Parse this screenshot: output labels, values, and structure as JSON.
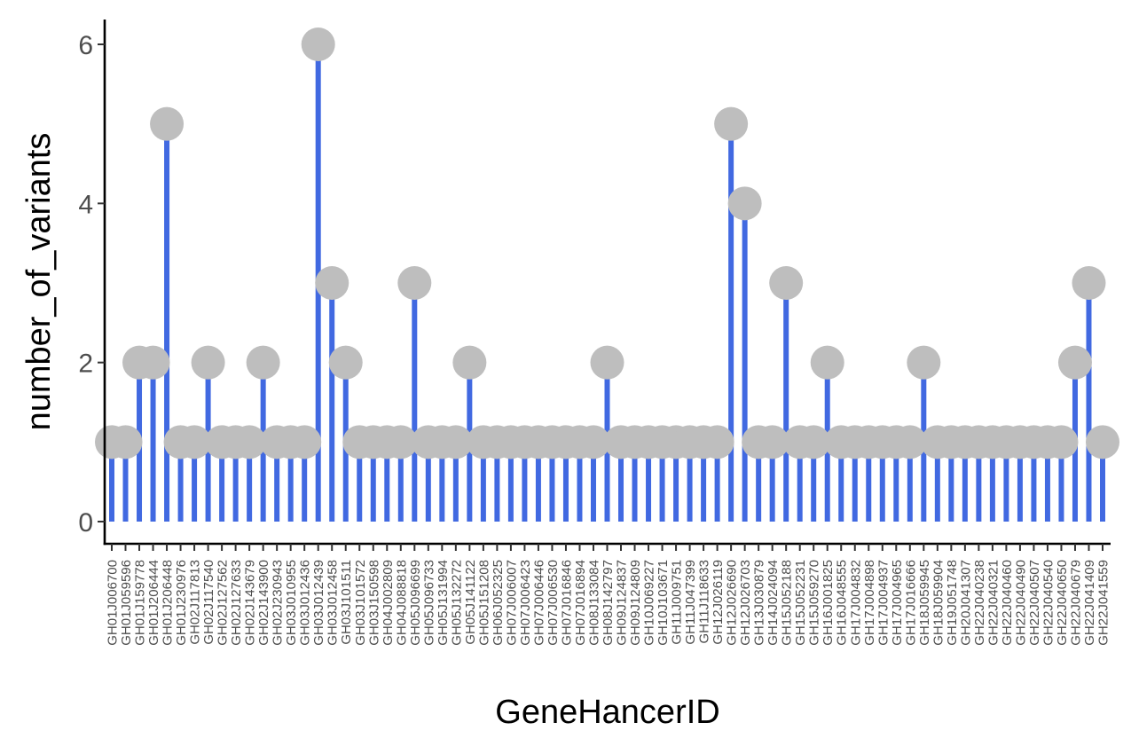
{
  "chart_data": {
    "type": "lollipop",
    "xlabel": "GeneHancerID",
    "ylabel": "number_of_variants",
    "ylim": [
      0,
      6.3
    ],
    "yticks": [
      0,
      2,
      4,
      6
    ],
    "grid": false,
    "legend": "none",
    "colors": {
      "stem": "#4169E1",
      "dot": "#BEBEBE",
      "axis": "#000000",
      "tick_label": "#4D4D4D"
    },
    "categories": [
      "GH01J006700",
      "GH01J059596",
      "GH01J159778",
      "GH01J206444",
      "GH01J206448",
      "GH01J230976",
      "GH02J117813",
      "GH02J117540",
      "GH02J127562",
      "GH02J127633",
      "GH02J143679",
      "GH02J143900",
      "GH02J230943",
      "GH03J010955",
      "GH03J012436",
      "GH03J012439",
      "GH03J012458",
      "GH03J101511",
      "GH03J101572",
      "GH03J150598",
      "GH04J002809",
      "GH04J088818",
      "GH05J096699",
      "GH05J096733",
      "GH05J131994",
      "GH05J132272",
      "GH05J141122",
      "GH05J151208",
      "GH06J052325",
      "GH07J006007",
      "GH07J006423",
      "GH07J006446",
      "GH07J006530",
      "GH07J016846",
      "GH07J016894",
      "GH08J133084",
      "GH08J142797",
      "GH09J124837",
      "GH09J124809",
      "GH10J069227",
      "GH10J103671",
      "GH11J009751",
      "GH11J047399",
      "GH11J118633",
      "GH12J026119",
      "GH12J026690",
      "GH12J026703",
      "GH13J030879",
      "GH14J024094",
      "GH15J052188",
      "GH15J052231",
      "GH15J059270",
      "GH16J001825",
      "GH16J048555",
      "GH17J004832",
      "GH17J004898",
      "GH17J004937",
      "GH17J004965",
      "GH17J016666",
      "GH18J059945",
      "GH18J059904",
      "GH19J051748",
      "GH20J041307",
      "GH22J040238",
      "GH22J040321",
      "GH22J040460",
      "GH22J040490",
      "GH22J040507",
      "GH22J040540",
      "GH22J040650",
      "GH22J040679",
      "GH22J041409",
      "GH22J041559"
    ],
    "values": [
      1,
      1,
      2,
      2,
      5,
      1,
      1,
      2,
      1,
      1,
      1,
      2,
      1,
      1,
      1,
      6,
      3,
      2,
      1,
      1,
      1,
      1,
      3,
      1,
      1,
      1,
      2,
      1,
      1,
      1,
      1,
      1,
      1,
      1,
      1,
      1,
      2,
      1,
      1,
      1,
      1,
      1,
      1,
      1,
      1,
      5,
      4,
      1,
      1,
      3,
      1,
      1,
      2,
      1,
      1,
      1,
      1,
      1,
      1,
      2,
      1,
      1,
      1,
      1,
      1,
      1,
      1,
      1,
      1,
      1,
      2,
      3,
      1
    ]
  }
}
